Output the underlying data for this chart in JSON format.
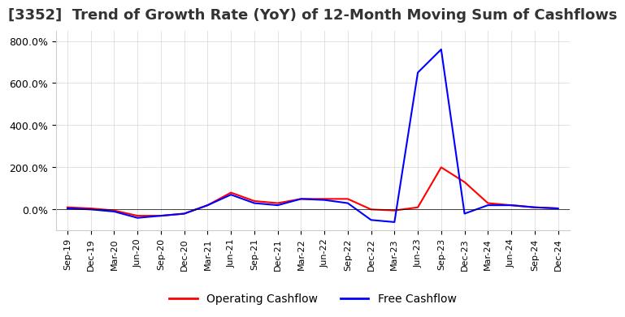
{
  "title": "[3352]  Trend of Growth Rate (YoY) of 12-Month Moving Sum of Cashflows",
  "title_fontsize": 13,
  "background_color": "#ffffff",
  "grid_color": "#cccccc",
  "ylim": [
    -100,
    850
  ],
  "yticks": [
    0,
    200,
    400,
    600,
    800
  ],
  "legend_labels": [
    "Operating Cashflow",
    "Free Cashflow"
  ],
  "legend_colors": [
    "#ff0000",
    "#0000ff"
  ],
  "x_labels": [
    "Sep-19",
    "Dec-19",
    "Mar-20",
    "Jun-20",
    "Sep-20",
    "Dec-20",
    "Mar-21",
    "Jun-21",
    "Sep-21",
    "Dec-21",
    "Mar-22",
    "Jun-22",
    "Sep-22",
    "Dec-22",
    "Mar-23",
    "Jun-23",
    "Sep-23",
    "Dec-23",
    "Mar-24",
    "Jun-24",
    "Sep-24",
    "Dec-24"
  ],
  "operating_cashflow": [
    10,
    5,
    -5,
    -30,
    -30,
    -20,
    20,
    80,
    40,
    30,
    50,
    50,
    50,
    0,
    -5,
    10,
    200,
    130,
    30,
    20,
    10,
    5
  ],
  "free_cashflow": [
    5,
    0,
    -10,
    -40,
    -30,
    -20,
    20,
    70,
    30,
    20,
    50,
    45,
    30,
    -50,
    -60,
    650,
    760,
    -20,
    20,
    20,
    10,
    5
  ]
}
